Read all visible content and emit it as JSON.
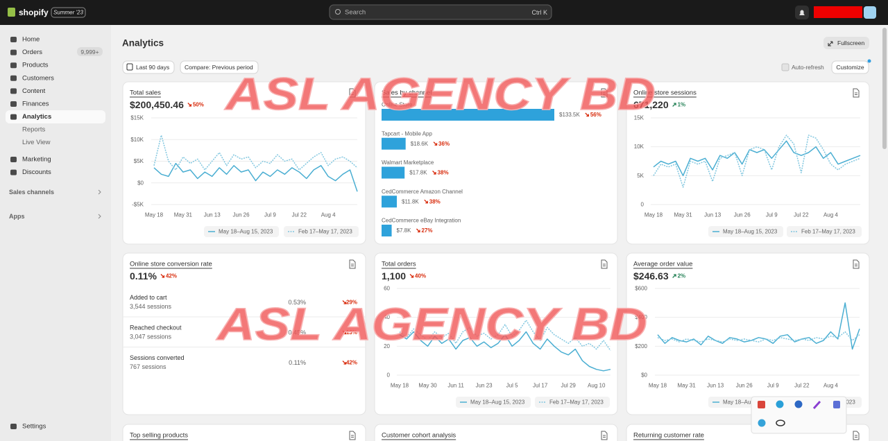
{
  "topbar": {
    "brand": "shopify",
    "edition": "Summer '23",
    "search": "Search",
    "shortcut": "Ctrl K"
  },
  "sidebar": {
    "main": [
      "Home",
      "Orders",
      "Products",
      "Customers",
      "Content",
      "Finances",
      "Analytics"
    ],
    "orders_badge": "9,999+",
    "sub": [
      "Reports",
      "Live View"
    ],
    "more": [
      "Marketing",
      "Discounts"
    ],
    "sections": [
      "Sales channels",
      "Apps"
    ],
    "settings": "Settings"
  },
  "header": {
    "title": "Analytics",
    "fullscreen": "Fullscreen",
    "date_range": "Last 90 days",
    "compare": "Compare: Previous period",
    "auto_refresh": "Auto-refresh",
    "customize": "Customize"
  },
  "watermark": "ASL AGENCY BD",
  "chart_data": [
    {
      "type": "line",
      "title": "Total sales",
      "total": "$200,450.46",
      "change": "50%",
      "direction": "down",
      "categories": [
        "May 18",
        null,
        null,
        null,
        "May 31",
        null,
        null,
        null,
        "Jun 13",
        null,
        null,
        null,
        "Jun 26",
        null,
        null,
        null,
        "Jul 9",
        null,
        null,
        null,
        "Jul 22",
        null,
        null,
        null,
        "Aug 4",
        null,
        null,
        null,
        null
      ],
      "series": [
        {
          "name": "May 18–Aug 15, 2023",
          "color": "#4aaed2",
          "style": "solid",
          "values": [
            3500,
            2000,
            1500,
            4500,
            2500,
            3000,
            1000,
            2500,
            1500,
            3500,
            2000,
            4000,
            2500,
            3000,
            500,
            2500,
            1500,
            3000,
            2000,
            3500,
            2500,
            1000,
            3000,
            4000,
            1500,
            500,
            2000,
            3000,
            -2000
          ]
        },
        {
          "name": "Feb 17–May 17, 2023",
          "color": "#80c6df",
          "style": "dotted",
          "values": [
            4000,
            11000,
            5000,
            3000,
            6000,
            4500,
            5500,
            3000,
            5000,
            7000,
            4000,
            6500,
            5500,
            6000,
            3500,
            5000,
            4500,
            6500,
            5000,
            5500,
            3000,
            4500,
            6000,
            7000,
            4000,
            5500,
            6000,
            5000,
            3500
          ]
        }
      ],
      "ylim": [
        -5000,
        15000
      ],
      "yticks": [
        {
          "value": 15000,
          "label": "$15K"
        },
        {
          "value": 10000,
          "label": "$10K"
        },
        {
          "value": 5000,
          "label": "$5K"
        },
        {
          "value": 0,
          "label": "$0"
        },
        {
          "value": -5000,
          "label": "-$5K"
        }
      ],
      "grid": true
    },
    {
      "type": "bar",
      "title": "Sales by channel",
      "direction": "down",
      "color": "#2ea2db",
      "categories": [
        "Online Store",
        "Tapcart - Mobile App",
        "Walmart Marketplace",
        "CedCommerce Amazon Channel",
        "CedCommerce eBay Integration"
      ],
      "values": [
        133500,
        18600,
        17800,
        11800,
        7800
      ],
      "value_labels": [
        "$133.5K",
        "$18.6K",
        "$17.8K",
        "$11.8K",
        "$7.8K"
      ],
      "changes": [
        "56%",
        "36%",
        "38%",
        "38%",
        "27%"
      ]
    },
    {
      "type": "line",
      "title": "Online store sessions",
      "total": "671,220",
      "change": "1%",
      "direction": "up",
      "categories": [
        "May 18",
        null,
        null,
        null,
        "May 31",
        null,
        null,
        null,
        "Jun 13",
        null,
        null,
        null,
        "Jun 26",
        null,
        null,
        null,
        "Jul 9",
        null,
        null,
        null,
        "Jul 22",
        null,
        null,
        null,
        "Aug 4",
        null,
        null,
        null,
        null
      ],
      "series": [
        {
          "name": "May 18–Aug 15, 2023",
          "color": "#4aaed2",
          "style": "solid",
          "values": [
            6500,
            7500,
            7000,
            7500,
            5000,
            8000,
            7500,
            8000,
            6000,
            8500,
            8000,
            9000,
            7000,
            9500,
            9000,
            9500,
            8000,
            9500,
            11000,
            9000,
            8500,
            9000,
            10000,
            8000,
            9000,
            7000,
            7500,
            8000,
            8500
          ]
        },
        {
          "name": "Feb 17–May 17, 2023",
          "color": "#80c6df",
          "style": "dotted",
          "values": [
            5000,
            7000,
            6500,
            7000,
            3000,
            7500,
            7000,
            7500,
            4000,
            8000,
            8500,
            9000,
            5000,
            9500,
            10000,
            9500,
            6000,
            10000,
            12000,
            10500,
            5500,
            12000,
            11500,
            9500,
            7000,
            6000,
            7000,
            7500,
            8000
          ]
        }
      ],
      "ylim": [
        0,
        15000
      ],
      "yticks": [
        {
          "value": 15000,
          "label": "15K"
        },
        {
          "value": 10000,
          "label": "10K"
        },
        {
          "value": 5000,
          "label": "5K"
        },
        0
      ],
      "grid": true
    },
    {
      "type": "line",
      "title": "Total orders",
      "total": "1,100",
      "change": "40%",
      "direction": "down",
      "categories": [
        "May 18",
        null,
        null,
        null,
        "May 30",
        null,
        null,
        null,
        "Jun 11",
        null,
        null,
        null,
        "Jun 23",
        null,
        null,
        null,
        "Jul 5",
        null,
        null,
        null,
        "Jul 17",
        null,
        null,
        null,
        "Jul 29",
        null,
        null,
        null,
        "Aug 10",
        null,
        null
      ],
      "series": [
        {
          "name": "May 18–Aug 15, 2023",
          "color": "#4aaed2",
          "style": "solid",
          "values": [
            28,
            25,
            30,
            24,
            20,
            27,
            22,
            25,
            18,
            24,
            26,
            20,
            23,
            19,
            22,
            28,
            20,
            24,
            30,
            22,
            18,
            25,
            20,
            16,
            14,
            18,
            10,
            6,
            4,
            3,
            4
          ]
        },
        {
          "name": "Feb 17–May 17, 2023",
          "color": "#80c6df",
          "style": "dotted",
          "values": [
            30,
            26,
            32,
            28,
            24,
            30,
            26,
            29,
            22,
            30,
            33,
            27,
            29,
            25,
            28,
            35,
            27,
            31,
            38,
            30,
            24,
            33,
            28,
            25,
            22,
            26,
            20,
            22,
            18,
            24,
            17
          ]
        }
      ],
      "ylim": [
        0,
        60
      ],
      "yticks": [
        0,
        20,
        40,
        60
      ],
      "grid": true
    },
    {
      "type": "line",
      "title": "Average order value",
      "total": "$246.63",
      "change": "2%",
      "direction": "up",
      "categories": [
        "May 18",
        null,
        null,
        null,
        "May 31",
        null,
        null,
        null,
        "Jun 13",
        null,
        null,
        null,
        "Jun 26",
        null,
        null,
        null,
        "Jul 9",
        null,
        null,
        null,
        "Jul 22",
        null,
        null,
        null,
        "Aug 4",
        null,
        null,
        null,
        null
      ],
      "series": [
        {
          "name": "May 18–Aug 15, 2023",
          "color": "#4aaed2",
          "style": "solid",
          "values": [
            280,
            220,
            260,
            240,
            230,
            250,
            210,
            270,
            240,
            220,
            260,
            250,
            230,
            240,
            260,
            250,
            220,
            270,
            280,
            230,
            250,
            260,
            220,
            240,
            300,
            250,
            500,
            180,
            320
          ]
        },
        {
          "name": "Feb 17–May 17, 2023",
          "color": "#80c6df",
          "style": "dotted",
          "values": [
            260,
            240,
            250,
            230,
            250,
            240,
            230,
            250,
            240,
            230,
            250,
            240,
            250,
            240,
            230,
            250,
            240,
            260,
            250,
            240,
            250,
            240,
            260,
            250,
            270,
            260,
            300,
            240,
            280
          ]
        }
      ],
      "ylim": [
        0,
        600
      ],
      "yticks": [
        {
          "value": 600,
          "label": "$600"
        },
        {
          "value": 400,
          "label": "$400"
        },
        {
          "value": 200,
          "label": "$200"
        },
        {
          "value": 0,
          "label": "$0"
        }
      ],
      "grid": true
    }
  ],
  "conversion": {
    "title": "Online store conversion rate",
    "total": "0.11%",
    "change": "42%",
    "direction": "down",
    "rows": [
      {
        "label": "Added to cart",
        "sessions": "3,544 sessions",
        "rate": "0.53%",
        "change": "29%"
      },
      {
        "label": "Reached checkout",
        "sessions": "3,047 sessions",
        "rate": "0.45%",
        "change": "13%"
      },
      {
        "label": "Sessions converted",
        "sessions": "767 sessions",
        "rate": "0.11%",
        "change": "42%"
      }
    ]
  },
  "more_reports": [
    "Top selling products",
    "Customer cohort analysis",
    "Returning customer rate"
  ]
}
